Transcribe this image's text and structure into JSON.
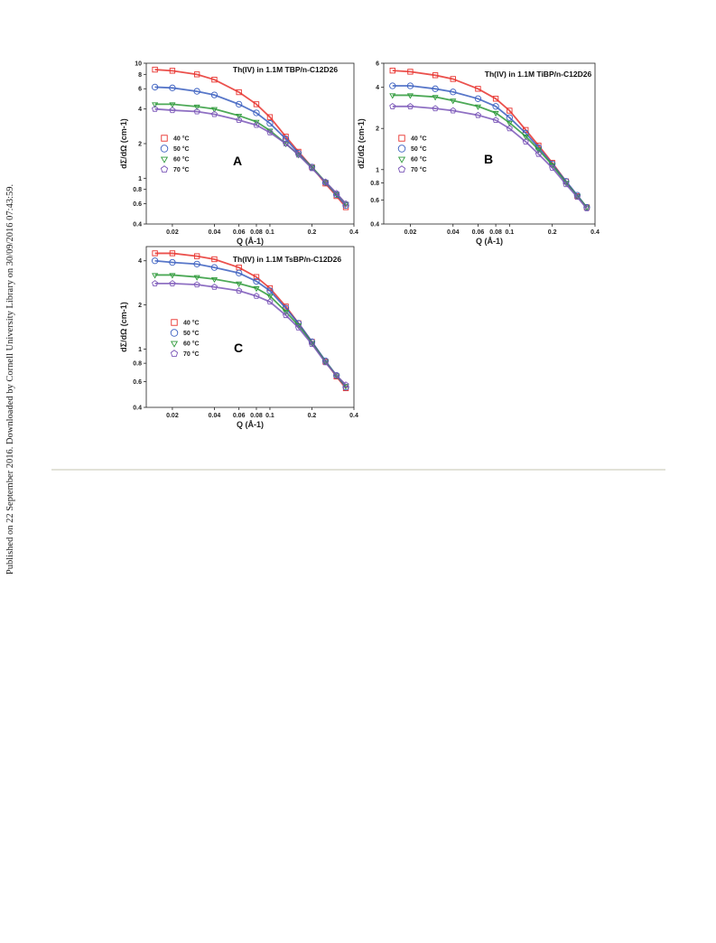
{
  "side_note": "Published on 22 September 2016. Downloaded by Cornell University Library on 30/09/2016 07:43:59.",
  "chart_data": [
    {
      "type": "scatter",
      "title": "Th(IV) in 1.1M TBP/n-C12D26",
      "annotation": "A",
      "x_label": "Q (Å-1)",
      "y_label": "dΣ/dΩ (cm-1)",
      "log_x": true,
      "log_y": true,
      "xlim": [
        0.013,
        0.4
      ],
      "xticks": [
        0.02,
        0.04,
        0.06,
        0.08,
        0.1,
        0.2,
        0.4
      ],
      "ylim": [
        0.4,
        10
      ],
      "yticks": [
        0.4,
        0.6,
        0.8,
        1,
        2,
        4,
        6,
        8,
        10
      ],
      "legend": "left",
      "x": [
        0.015,
        0.02,
        0.03,
        0.04,
        0.06,
        0.08,
        0.1,
        0.13,
        0.16,
        0.2,
        0.25,
        0.3,
        0.35
      ],
      "series": [
        {
          "name": "40 °C",
          "color": "#e8322e",
          "marker": "square",
          "values": [
            8.8,
            8.6,
            8.0,
            7.2,
            5.6,
            4.4,
            3.4,
            2.3,
            1.7,
            1.25,
            0.9,
            0.7,
            0.56
          ]
        },
        {
          "name": "50 °C",
          "color": "#3b5fc0",
          "marker": "circle",
          "values": [
            6.2,
            6.1,
            5.7,
            5.3,
            4.4,
            3.7,
            3.0,
            2.2,
            1.65,
            1.25,
            0.92,
            0.72,
            0.58
          ]
        },
        {
          "name": "60 °C",
          "color": "#2e9a3a",
          "marker": "triangle",
          "values": [
            4.4,
            4.4,
            4.2,
            4.0,
            3.5,
            3.1,
            2.6,
            2.0,
            1.6,
            1.25,
            0.93,
            0.73,
            0.6
          ]
        },
        {
          "name": "70 °C",
          "color": "#7b57b8",
          "marker": "pentagon",
          "values": [
            4.0,
            3.9,
            3.8,
            3.6,
            3.2,
            2.9,
            2.5,
            2.0,
            1.6,
            1.22,
            0.93,
            0.74,
            0.6
          ]
        }
      ]
    },
    {
      "type": "scatter",
      "title": "Th(IV) in 1.1M TiBP/n-C12D26",
      "annotation": "B",
      "x_label": "Q (Å-1)",
      "y_label": "dΣ/dΩ (cm-1)",
      "log_x": true,
      "log_y": true,
      "xlim": [
        0.013,
        0.4
      ],
      "xticks": [
        0.02,
        0.04,
        0.06,
        0.08,
        0.1,
        0.2,
        0.4
      ],
      "ylim": [
        0.4,
        6
      ],
      "yticks": [
        0.4,
        0.6,
        0.8,
        1,
        2,
        4,
        6
      ],
      "legend": "left",
      "x": [
        0.015,
        0.02,
        0.03,
        0.04,
        0.06,
        0.08,
        0.1,
        0.13,
        0.16,
        0.2,
        0.25,
        0.3,
        0.35
      ],
      "series": [
        {
          "name": "40 °C",
          "color": "#e8322e",
          "marker": "square",
          "values": [
            5.3,
            5.2,
            4.9,
            4.6,
            3.9,
            3.3,
            2.7,
            1.95,
            1.5,
            1.12,
            0.82,
            0.64,
            0.53
          ]
        },
        {
          "name": "50 °C",
          "color": "#3b5fc0",
          "marker": "circle",
          "values": [
            4.1,
            4.1,
            3.9,
            3.7,
            3.3,
            2.9,
            2.4,
            1.85,
            1.45,
            1.1,
            0.82,
            0.65,
            0.53
          ]
        },
        {
          "name": "60 °C",
          "color": "#2e9a3a",
          "marker": "triangle",
          "values": [
            3.5,
            3.5,
            3.4,
            3.2,
            2.9,
            2.6,
            2.2,
            1.75,
            1.4,
            1.08,
            0.8,
            0.64,
            0.53
          ]
        },
        {
          "name": "70 °C",
          "color": "#7b57b8",
          "marker": "pentagon",
          "values": [
            2.9,
            2.9,
            2.8,
            2.7,
            2.5,
            2.3,
            2.0,
            1.6,
            1.3,
            1.03,
            0.78,
            0.63,
            0.52
          ]
        }
      ]
    },
    {
      "type": "scatter",
      "title": "Th(IV) in 1.1M TsBP/n-C12D26",
      "annotation": "C",
      "x_label": "Q (Å-1)",
      "y_label": "dΣ/dΩ (cm-1)",
      "log_x": true,
      "log_y": true,
      "xlim": [
        0.013,
        0.4
      ],
      "xticks": [
        0.02,
        0.04,
        0.06,
        0.08,
        0.1,
        0.2,
        0.4
      ],
      "ylim": [
        0.4,
        5
      ],
      "yticks": [
        0.4,
        0.6,
        0.8,
        1,
        2,
        4
      ],
      "legend": "left",
      "x": [
        0.015,
        0.02,
        0.03,
        0.04,
        0.06,
        0.08,
        0.1,
        0.13,
        0.16,
        0.2,
        0.25,
        0.3,
        0.35
      ],
      "series": [
        {
          "name": "40 °C",
          "color": "#e8322e",
          "marker": "square",
          "values": [
            4.5,
            4.5,
            4.3,
            4.1,
            3.6,
            3.1,
            2.6,
            1.95,
            1.5,
            1.12,
            0.82,
            0.65,
            0.54
          ]
        },
        {
          "name": "50 °C",
          "color": "#3b5fc0",
          "marker": "circle",
          "values": [
            4.0,
            3.9,
            3.8,
            3.6,
            3.3,
            2.9,
            2.5,
            1.9,
            1.5,
            1.12,
            0.83,
            0.66,
            0.55
          ]
        },
        {
          "name": "60 °C",
          "color": "#2e9a3a",
          "marker": "triangle",
          "values": [
            3.2,
            3.2,
            3.1,
            3.0,
            2.8,
            2.6,
            2.3,
            1.8,
            1.45,
            1.1,
            0.82,
            0.66,
            0.56
          ]
        },
        {
          "name": "70 °C",
          "color": "#7b57b8",
          "marker": "pentagon",
          "values": [
            2.8,
            2.8,
            2.75,
            2.65,
            2.5,
            2.3,
            2.1,
            1.7,
            1.4,
            1.08,
            0.81,
            0.66,
            0.57
          ]
        }
      ]
    }
  ]
}
